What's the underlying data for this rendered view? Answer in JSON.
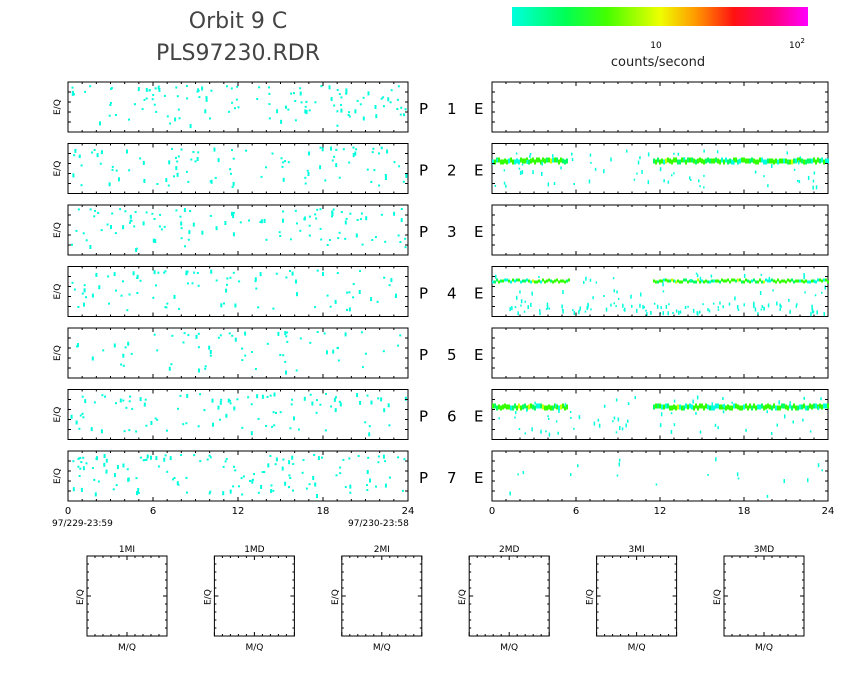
{
  "header": {
    "title_line1": "Orbit  9  C",
    "title_line2": "PLS97230.RDR"
  },
  "colorbar": {
    "label": "counts/second",
    "tick_10": "10",
    "tick_100_base": "10",
    "tick_100_exp": "2",
    "colors": [
      "#00ffdd",
      "#00ff66",
      "#33ff00",
      "#ccff00",
      "#ffcc00",
      "#ff6600",
      "#ff0022",
      "#ff0099",
      "#ff00ff"
    ]
  },
  "panels": {
    "ylabel": "E/Q",
    "rows": [
      {
        "p": "P",
        "n": "1",
        "e": "E"
      },
      {
        "p": "P",
        "n": "2",
        "e": "E"
      },
      {
        "p": "P",
        "n": "3",
        "e": "E"
      },
      {
        "p": "P",
        "n": "4",
        "e": "E"
      },
      {
        "p": "P",
        "n": "5",
        "e": "E"
      },
      {
        "p": "P",
        "n": "6",
        "e": "E"
      },
      {
        "p": "P",
        "n": "7",
        "e": "E"
      }
    ]
  },
  "time_axis": {
    "ticks": [
      "0",
      "6",
      "12",
      "18",
      "24"
    ],
    "start_label": "97/229-23:59",
    "end_label": "97/230-23:58"
  },
  "mq_panels": {
    "ylabel": "E/Q",
    "xlabel": "M/Q",
    "titles": [
      "1MI",
      "1MD",
      "2MI",
      "2MD",
      "3MI",
      "3MD"
    ]
  },
  "chart_data": {
    "type": "heatmap",
    "x_range_hours": [
      0,
      24
    ],
    "left_column_activity": [
      0.55,
      0.45,
      0.5,
      0.4,
      0.3,
      0.45,
      0.6
    ],
    "right_column_bands": [
      [],
      [
        {
          "from": 0,
          "to": 5.3,
          "level": "high"
        },
        {
          "from": 11.5,
          "to": 24,
          "level": "high"
        }
      ],
      [],
      [
        {
          "from": 0,
          "to": 5.5,
          "level": "mid"
        },
        {
          "from": 11.5,
          "to": 24,
          "level": "mid"
        }
      ],
      [],
      [
        {
          "from": 0,
          "to": 5.3,
          "level": "high"
        },
        {
          "from": 11.5,
          "to": 24,
          "level": "high"
        }
      ],
      []
    ]
  }
}
